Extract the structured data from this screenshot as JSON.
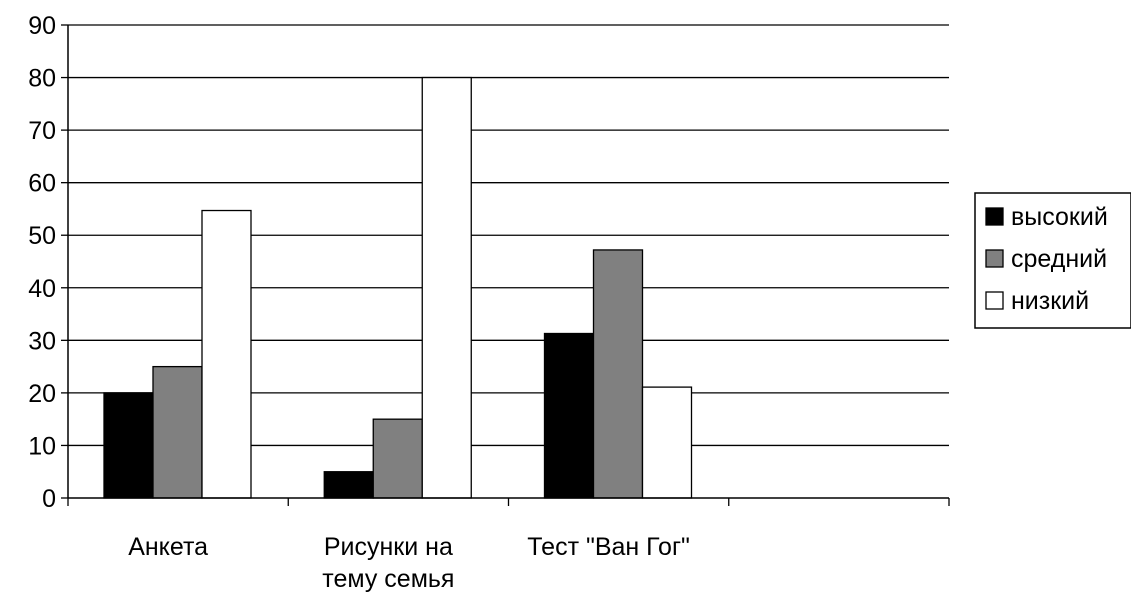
{
  "chart_data": {
    "type": "bar",
    "title": "",
    "xlabel": "",
    "ylabel": "",
    "categories": [
      [
        "Анкета"
      ],
      [
        "Рисунки на",
        "тему семья"
      ],
      [
        "Тест \"Ван Гог\""
      ],
      [
        ""
      ]
    ],
    "series": [
      {
        "name": "высокий",
        "color": "#000000",
        "values": [
          20,
          5,
          31.3,
          null
        ]
      },
      {
        "name": "средний",
        "color": "#808080",
        "values": [
          25,
          15,
          47.2,
          null
        ]
      },
      {
        "name": "низкий",
        "color": "#ffffff",
        "values": [
          54.7,
          80,
          21.1,
          null
        ]
      }
    ],
    "ylim": [
      0,
      90
    ],
    "yticks": [
      0,
      10,
      20,
      30,
      40,
      50,
      60,
      70,
      80,
      90
    ],
    "grid": true,
    "legend_position": "right"
  }
}
